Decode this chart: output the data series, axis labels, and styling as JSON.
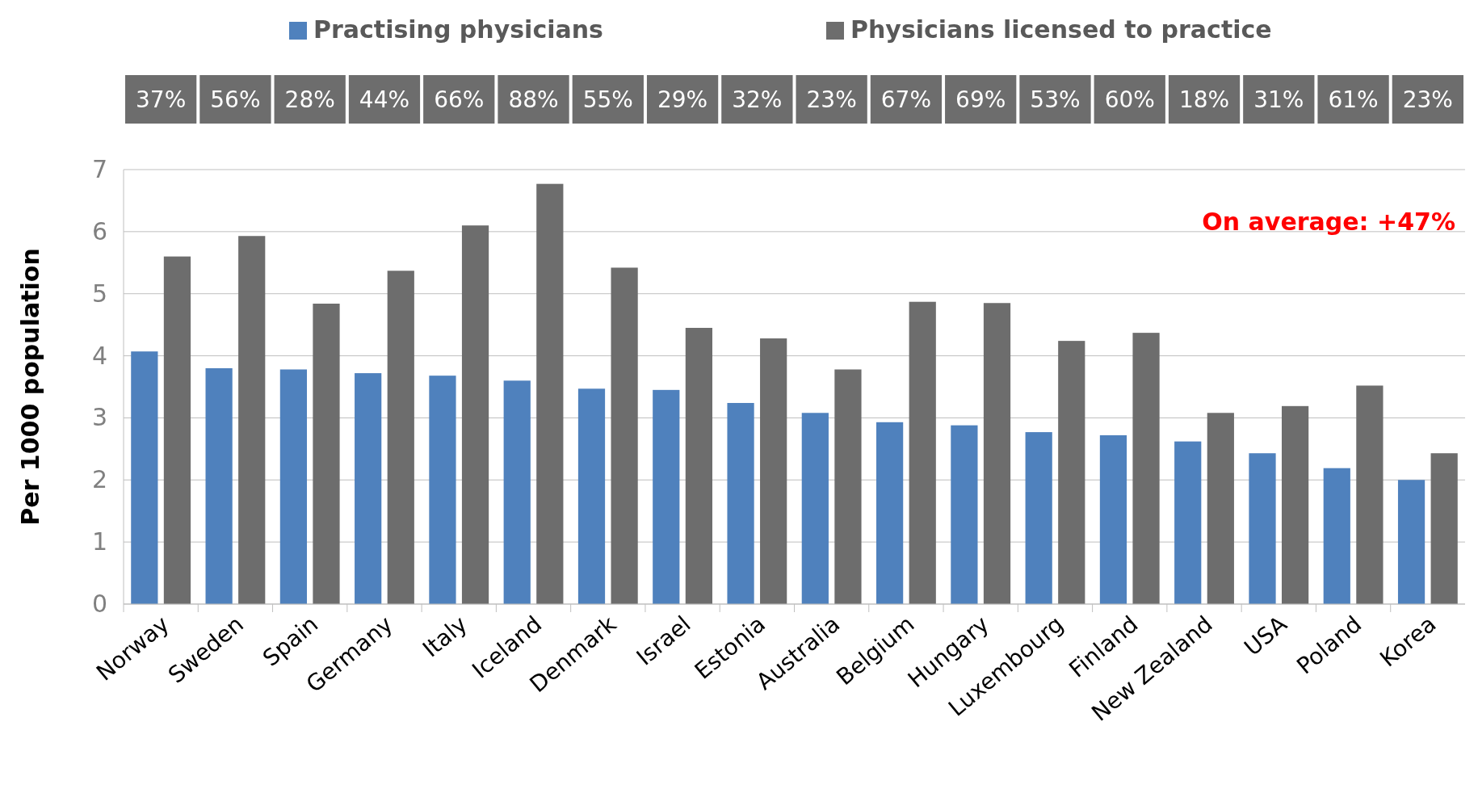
{
  "chart_data": {
    "type": "bar",
    "ylabel": "Per 1000 population",
    "categories": [
      "Norway",
      "Sweden",
      "Spain",
      "Germany",
      "Italy",
      "Iceland",
      "Denmark",
      "Israel",
      "Estonia",
      "Australia",
      "Belgium",
      "Hungary",
      "Luxembourg",
      "Finland",
      "New Zealand",
      "USA",
      "Poland",
      "Korea"
    ],
    "series": [
      {
        "name": "Practising physicians",
        "color": "#4f81bd",
        "values": [
          4.07,
          3.8,
          3.78,
          3.72,
          3.68,
          3.6,
          3.47,
          3.45,
          3.24,
          3.08,
          2.93,
          2.88,
          2.77,
          2.72,
          2.62,
          2.43,
          2.19,
          2.0
        ]
      },
      {
        "name": "Physicians licensed to practice",
        "color": "#6d6d6d",
        "values": [
          5.6,
          5.93,
          4.84,
          5.37,
          6.1,
          6.77,
          5.42,
          4.45,
          4.28,
          3.78,
          4.87,
          4.85,
          4.24,
          4.37,
          3.08,
          3.19,
          3.52,
          2.43
        ]
      }
    ],
    "ylim": [
      0,
      7
    ],
    "yticks": [
      0,
      1,
      2,
      3,
      4,
      5,
      6,
      7
    ],
    "grid": "y",
    "legend": "top",
    "annotations": [
      "37%",
      "56%",
      "28%",
      "44%",
      "66%",
      "88%",
      "55%",
      "29%",
      "32%",
      "23%",
      "67%",
      "69%",
      "53%",
      "60%",
      "18%",
      "31%",
      "61%",
      "23%",
      "On average: +47%"
    ]
  }
}
